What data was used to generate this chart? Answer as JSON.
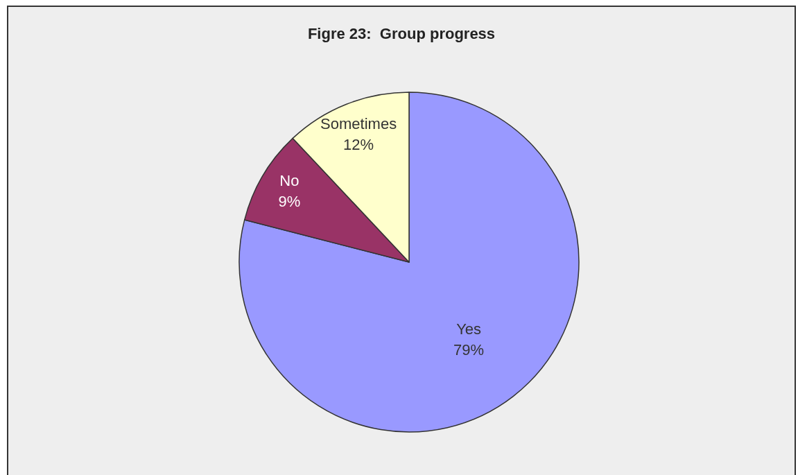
{
  "chart_data": {
    "type": "pie",
    "title": "Figre 23:  Group progress",
    "categories": [
      "Yes",
      "No",
      "Sometimes"
    ],
    "values": [
      79,
      9,
      12
    ],
    "colors": [
      "#9999ff",
      "#993366",
      "#ffffcc"
    ],
    "value_labels": [
      "79%",
      "9%",
      "12%"
    ],
    "legend": false
  }
}
